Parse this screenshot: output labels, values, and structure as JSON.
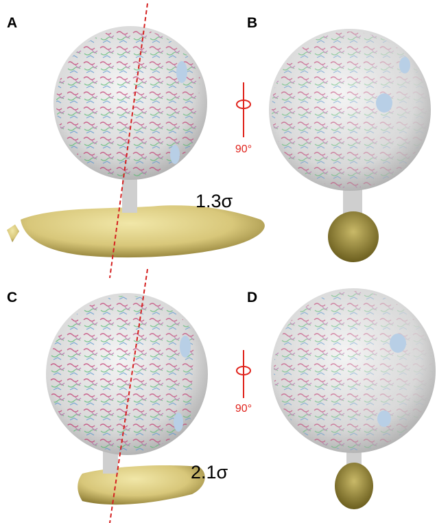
{
  "panels": [
    {
      "label": "A",
      "annotation": "1.3σ"
    },
    {
      "label": "B",
      "rotation": "90°"
    },
    {
      "label": "C",
      "annotation": "2.1σ"
    },
    {
      "label": "D",
      "rotation": "90°"
    }
  ]
}
